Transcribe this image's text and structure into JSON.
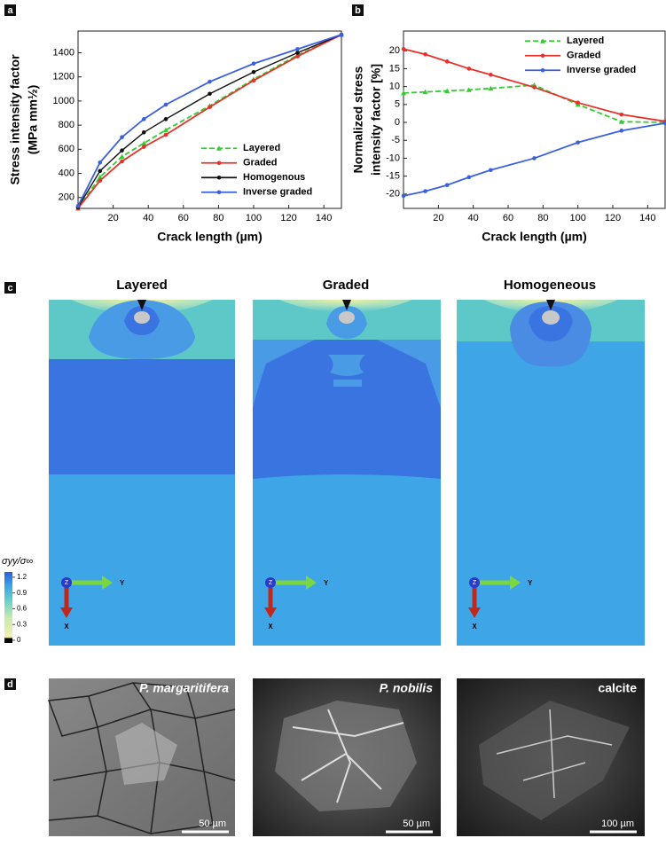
{
  "chart_data": [
    {
      "type": "line",
      "panel_label": "a",
      "xlabel": "Crack length (µm)",
      "ylabel": "Stress intensity factor",
      "ylabel_unit": "(MPa mm½)",
      "x": [
        0,
        12.5,
        25,
        37.5,
        50,
        75,
        100,
        125,
        150
      ],
      "xlim": [
        0,
        150
      ],
      "ylim": [
        110,
        1580
      ],
      "xticks": [
        20,
        40,
        60,
        80,
        100,
        120,
        140
      ],
      "yticks": [
        200,
        400,
        600,
        800,
        1000,
        1200,
        1400
      ],
      "legend": "lower right",
      "series": [
        {
          "name": "Layered",
          "color": "#33cc33",
          "dash": true,
          "marker": "triangle",
          "values": [
            110,
            370,
            540,
            650,
            760,
            960,
            1180,
            1380,
            1550
          ]
        },
        {
          "name": "Graded",
          "color": "#e8312a",
          "marker": "circle",
          "values": [
            110,
            340,
            500,
            620,
            720,
            950,
            1170,
            1370,
            1550
          ]
        },
        {
          "name": "Homogenous",
          "color": "#111111",
          "marker": "circle",
          "values": [
            120,
            420,
            590,
            740,
            850,
            1060,
            1240,
            1400,
            1550
          ]
        },
        {
          "name": "Inverse graded",
          "color": "#3a5fe0",
          "marker": "circle",
          "values": [
            130,
            490,
            700,
            850,
            970,
            1160,
            1310,
            1430,
            1550
          ]
        }
      ]
    },
    {
      "type": "line",
      "panel_label": "b",
      "xlabel": "Crack length (µm)",
      "ylabel": [
        "Normalized stress",
        "intensity factor [%]"
      ],
      "x": [
        0,
        12.5,
        25,
        37.5,
        50,
        75,
        100,
        125,
        150
      ],
      "xlim": [
        0,
        150
      ],
      "ylim": [
        -24,
        25.5
      ],
      "xticks": [
        20,
        40,
        60,
        80,
        100,
        120,
        140
      ],
      "yticks": [
        -20,
        -15,
        -10,
        -5,
        0,
        5,
        10,
        15,
        20
      ],
      "legend": "upper right",
      "series": [
        {
          "name": "Layered",
          "color": "#33cc33",
          "dash": true,
          "marker": "triangle",
          "values": [
            8.2,
            8.5,
            8.8,
            9.1,
            9.5,
            10.4,
            5,
            0.2,
            0
          ]
        },
        {
          "name": "Graded",
          "color": "#e8312a",
          "marker": "circle",
          "values": [
            20.5,
            19,
            17,
            15,
            13.3,
            9.8,
            5.5,
            2.2,
            0.3
          ]
        },
        {
          "name": "Inverse graded",
          "color": "#3a5fe0",
          "marker": "circle",
          "values": [
            -20.5,
            -19.2,
            -17.5,
            -15.3,
            -13.3,
            -10,
            -5.6,
            -2.3,
            -0.2
          ]
        }
      ]
    }
  ],
  "panel_c": {
    "label": "c",
    "titles": [
      "Layered",
      "Graded",
      "Homogeneous"
    ],
    "colorbar": {
      "title": "σyy/σ∞",
      "clim": [
        0,
        1.35
      ],
      "ticks": [
        1.2,
        0.9,
        0.6,
        0.3,
        0
      ]
    },
    "axes": {
      "y": "Y",
      "x": "X",
      "z": "Z"
    }
  },
  "panel_d": {
    "label": "d",
    "images": [
      {
        "title": "P. margaritifera",
        "scale": "50 µm"
      },
      {
        "title": "P. nobilis",
        "scale": "50 µm"
      },
      {
        "title": "calcite",
        "scale": "100 µm"
      }
    ]
  }
}
